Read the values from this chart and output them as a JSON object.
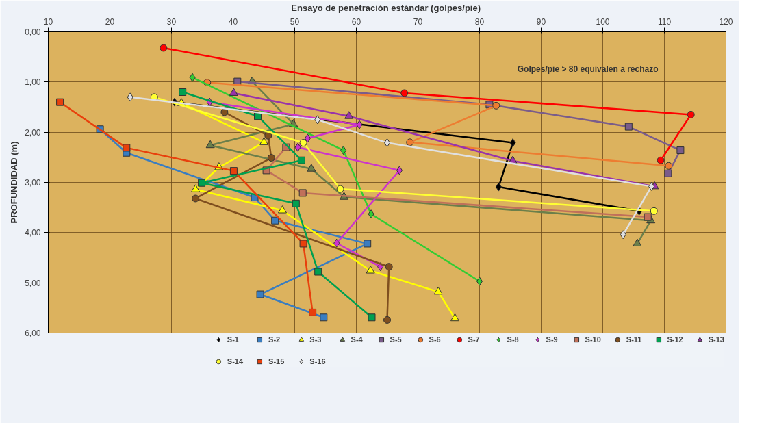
{
  "chart_data": {
    "type": "line",
    "xlabel": "Ensayo de penetración estándar  (golpes/pie)",
    "ylabel": "PROFUNDIDAD (m)",
    "xlim": [
      10,
      120
    ],
    "xticks": [
      10,
      20,
      30,
      40,
      50,
      60,
      70,
      80,
      90,
      100,
      110,
      120
    ],
    "ylim": [
      6,
      0
    ],
    "yticks": [
      {
        "value": 0,
        "label": "0,00"
      },
      {
        "value": 1,
        "label": "1,00"
      },
      {
        "value": 2,
        "label": "2,00"
      },
      {
        "value": 3,
        "label": "3,00"
      },
      {
        "value": 4,
        "label": "4,00"
      },
      {
        "value": 5,
        "label": "5,00"
      },
      {
        "value": 6,
        "label": "6,00"
      }
    ],
    "grid": true,
    "legend": "bottom",
    "line_style": "solid",
    "annotations": [
      "Golpes/pie > 80 equivalen a rechazo"
    ],
    "series": [
      {
        "name": "S-1",
        "color": "#000000",
        "marker": "diamond",
        "x": [
          30.5,
          85.4,
          83.1,
          105.9
        ],
        "values": [
          1.4,
          2.21,
          3.09,
          3.57
        ]
      },
      {
        "name": "S-2",
        "color": "#3a7dc0",
        "marker": "square",
        "x": [
          18.4,
          22.7,
          43.5,
          46.8,
          61.8,
          44.4,
          54.7
        ],
        "values": [
          1.94,
          2.41,
          3.3,
          3.76,
          4.22,
          5.23,
          5.69
        ]
      },
      {
        "name": "S-3",
        "color": "#ffff00",
        "marker": "triangle",
        "x": [
          31.6,
          45.0,
          37.7,
          33.9,
          48.0,
          62.3,
          73.3,
          76.0
        ],
        "values": [
          1.42,
          2.2,
          2.7,
          3.14,
          3.56,
          4.76,
          5.18,
          5.71
        ]
      },
      {
        "name": "S-4",
        "color": "#6b7f4a",
        "marker": "triangle",
        "x": [
          43.1,
          49.8,
          36.3,
          52.7,
          58.0,
          107.8,
          105.6
        ],
        "values": [
          0.99,
          1.84,
          2.26,
          2.73,
          3.29,
          3.76,
          4.22
        ]
      },
      {
        "name": "S-5",
        "color": "#7a5c8a",
        "marker": "square",
        "x": [
          40.7,
          81.6,
          104.2,
          112.6,
          110.6
        ],
        "values": [
          0.99,
          1.45,
          1.89,
          2.36,
          2.82
        ]
      },
      {
        "name": "S-6",
        "color": "#ed7d31",
        "marker": "circle",
        "x": [
          35.8,
          82.7,
          68.7,
          110.7
        ],
        "values": [
          1.01,
          1.47,
          2.2,
          2.67
        ]
      },
      {
        "name": "S-7",
        "color": "#ff0000",
        "marker": "circle",
        "x": [
          28.7,
          67.8,
          114.3,
          109.4
        ],
        "values": [
          0.32,
          1.22,
          1.65,
          2.56
        ]
      },
      {
        "name": "S-8",
        "color": "#33cc33",
        "marker": "diamond",
        "x": [
          33.4,
          57.9,
          62.4,
          80.0
        ],
        "values": [
          0.91,
          2.36,
          3.63,
          4.97
        ]
      },
      {
        "name": "S-9",
        "color": "#cc33cc",
        "marker": "diamond",
        "x": [
          36.2,
          60.5,
          52.1,
          50.5,
          67.0,
          56.8,
          63.9
        ],
        "values": [
          1.4,
          1.85,
          2.12,
          2.3,
          2.76,
          4.21,
          4.68
        ]
      },
      {
        "name": "S-10",
        "color": "#c0705a",
        "marker": "square",
        "x": [
          48.6,
          45.4,
          51.3,
          107.3
        ],
        "values": [
          2.3,
          2.76,
          3.21,
          3.69
        ]
      },
      {
        "name": "S-11",
        "color": "#7f4f1f",
        "marker": "circle",
        "x": [
          38.6,
          45.7,
          46.2,
          33.9,
          65.3,
          65.0
        ],
        "values": [
          1.6,
          2.07,
          2.51,
          3.32,
          4.68,
          5.74
        ]
      },
      {
        "name": "S-12",
        "color": "#00a050",
        "marker": "square",
        "x": [
          31.8,
          44.0,
          51.1,
          34.9,
          50.2,
          53.8,
          62.5
        ],
        "values": [
          1.2,
          1.68,
          2.56,
          3.01,
          3.42,
          4.78,
          5.69
        ]
      },
      {
        "name": "S-13",
        "color": "#9933aa",
        "marker": "triangle",
        "x": [
          40.1,
          58.8,
          85.4,
          108.4
        ],
        "values": [
          1.22,
          1.68,
          2.57,
          3.08
        ]
      },
      {
        "name": "S-14",
        "color": "#ffff33",
        "marker": "circle",
        "x": [
          27.2,
          51.4,
          57.4,
          108.3
        ],
        "values": [
          1.3,
          2.21,
          3.13,
          3.57
        ]
      },
      {
        "name": "S-15",
        "color": "#e8400c",
        "marker": "square",
        "x": [
          11.9,
          22.7,
          40.1,
          51.4,
          52.9
        ],
        "values": [
          1.4,
          2.31,
          2.77,
          4.22,
          5.59
        ]
      },
      {
        "name": "S-16",
        "color": "#e0e0e0",
        "marker": "diamond",
        "x": [
          23.3,
          53.7,
          65.0,
          107.9,
          103.3
        ],
        "values": [
          1.3,
          1.75,
          2.21,
          3.08,
          4.04
        ]
      }
    ]
  }
}
